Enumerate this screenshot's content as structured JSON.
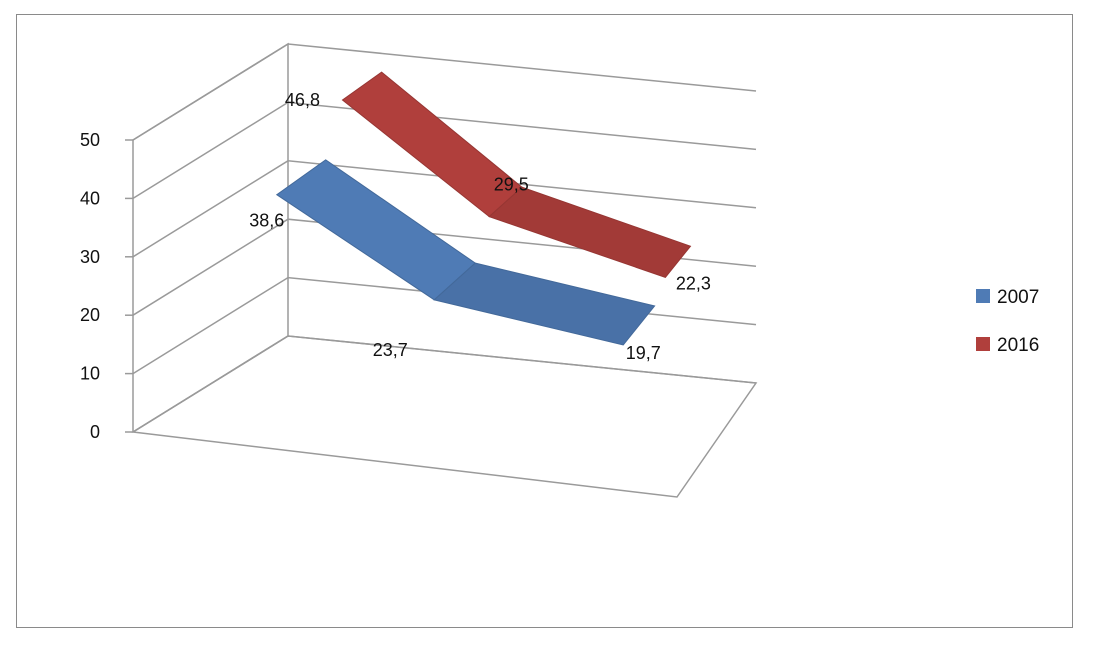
{
  "chart_data": {
    "type": "line",
    "style": "3d",
    "categories": [
      "",
      "",
      ""
    ],
    "series": [
      {
        "name": "2007",
        "values": [
          38.6,
          23.7,
          19.7
        ],
        "labels": [
          "38,6",
          "23,7",
          "19,7"
        ],
        "color": "#4f7bb5"
      },
      {
        "name": "2016",
        "values": [
          46.8,
          29.5,
          22.3
        ],
        "labels": [
          "46,8",
          "29,5",
          "22,3"
        ],
        "color": "#b03f3c"
      }
    ],
    "y_ticks": [
      "0",
      "10",
      "20",
      "30",
      "40",
      "50"
    ],
    "ylim": [
      0,
      50
    ],
    "grid": true,
    "legend": "right"
  }
}
